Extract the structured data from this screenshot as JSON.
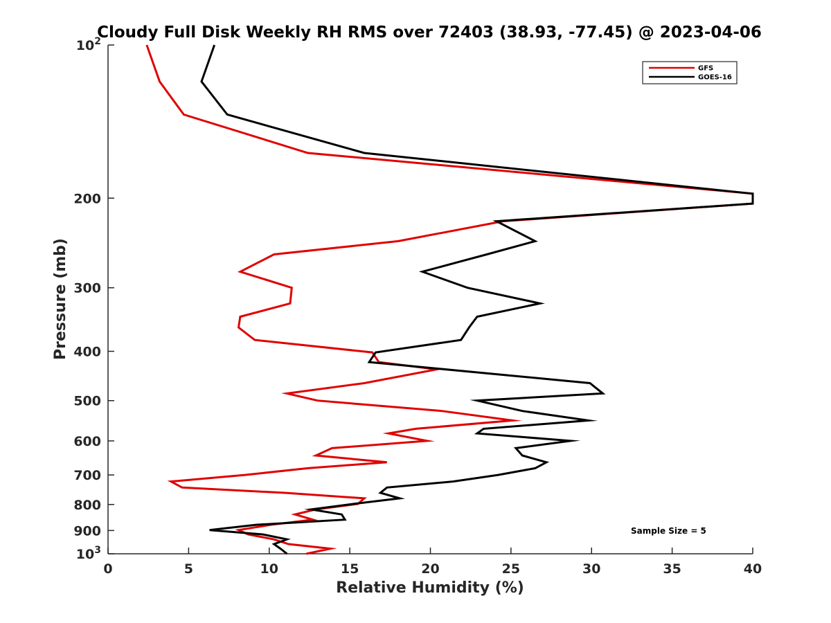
{
  "chart_data": {
    "type": "line",
    "title": "Cloudy Full Disk Weekly RH RMS over 72403 (38.93, -77.45) @ 2023-04-06",
    "xlabel": "Relative Humidity (%)",
    "ylabel": "Pressure (mb)",
    "xlim": [
      0,
      40
    ],
    "ylim": [
      100,
      1000
    ],
    "y_scale": "log",
    "y_reversed": true,
    "x_ticks": [
      "0",
      "5",
      "10",
      "15",
      "20",
      "25",
      "30",
      "35",
      "40"
    ],
    "y_ticks": [
      {
        "value": 100,
        "base": "10",
        "exp": "2"
      },
      {
        "value": 200,
        "label": "200"
      },
      {
        "value": 300,
        "label": "300"
      },
      {
        "value": 400,
        "label": "400"
      },
      {
        "value": 500,
        "label": "500"
      },
      {
        "value": 600,
        "label": "600"
      },
      {
        "value": 700,
        "label": "700"
      },
      {
        "value": 800,
        "label": "800"
      },
      {
        "value": 900,
        "label": "900"
      },
      {
        "value": 1000,
        "base": "10",
        "exp": "3"
      }
    ],
    "grid": false,
    "legend_position": "top-right",
    "annotation": "Sample Size = 5",
    "series": [
      {
        "name": "GFS",
        "color": "#e00000",
        "points": [
          [
            2.4,
            100
          ],
          [
            3.2,
            118
          ],
          [
            4.7,
            137
          ],
          [
            12.4,
            163
          ],
          [
            40.0,
            196
          ],
          [
            40.0,
            205
          ],
          [
            24.5,
            222
          ],
          [
            18.0,
            243
          ],
          [
            10.3,
            258
          ],
          [
            8.2,
            279
          ],
          [
            11.4,
            300
          ],
          [
            11.3,
            322
          ],
          [
            8.2,
            342
          ],
          [
            8.1,
            359
          ],
          [
            9.1,
            380
          ],
          [
            16.4,
            402
          ],
          [
            16.8,
            420
          ],
          [
            20.4,
            434
          ],
          [
            15.9,
            462
          ],
          [
            11.1,
            484
          ],
          [
            13.0,
            500
          ],
          [
            20.7,
            524
          ],
          [
            25.1,
            547
          ],
          [
            19.1,
            568
          ],
          [
            17.4,
            580
          ],
          [
            19.8,
            600
          ],
          [
            13.9,
            620
          ],
          [
            12.9,
            641
          ],
          [
            17.3,
            661
          ],
          [
            12.4,
            679
          ],
          [
            8.5,
            700
          ],
          [
            3.9,
            721
          ],
          [
            4.6,
            741
          ],
          [
            11.0,
            759
          ],
          [
            15.9,
            778
          ],
          [
            15.5,
            798
          ],
          [
            12.9,
            818
          ],
          [
            11.6,
            837
          ],
          [
            12.7,
            857
          ],
          [
            10.1,
            877
          ],
          [
            8.1,
            898
          ],
          [
            8.7,
            916
          ],
          [
            10.3,
            937
          ],
          [
            11.2,
            957
          ],
          [
            13.8,
            977
          ],
          [
            12.3,
            1000
          ]
        ]
      },
      {
        "name": "GOES-16",
        "color": "#000000",
        "points": [
          [
            6.6,
            100
          ],
          [
            5.8,
            118
          ],
          [
            7.4,
            137
          ],
          [
            15.9,
            163
          ],
          [
            40.0,
            196
          ],
          [
            40.0,
            205
          ],
          [
            24.1,
            222
          ],
          [
            26.5,
            243
          ],
          [
            23.5,
            258
          ],
          [
            19.5,
            279
          ],
          [
            22.3,
            300
          ],
          [
            26.8,
            322
          ],
          [
            22.9,
            342
          ],
          [
            22.4,
            359
          ],
          [
            21.9,
            380
          ],
          [
            16.6,
            402
          ],
          [
            16.2,
            420
          ],
          [
            29.9,
            462
          ],
          [
            30.7,
            484
          ],
          [
            22.9,
            500
          ],
          [
            25.7,
            524
          ],
          [
            29.8,
            547
          ],
          [
            23.3,
            568
          ],
          [
            22.9,
            580
          ],
          [
            28.7,
            600
          ],
          [
            25.3,
            620
          ],
          [
            25.7,
            641
          ],
          [
            27.2,
            661
          ],
          [
            26.5,
            679
          ],
          [
            24.2,
            700
          ],
          [
            21.4,
            721
          ],
          [
            17.3,
            741
          ],
          [
            16.9,
            759
          ],
          [
            18.1,
            778
          ],
          [
            15.2,
            798
          ],
          [
            12.6,
            818
          ],
          [
            14.5,
            837
          ],
          [
            14.7,
            857
          ],
          [
            9.2,
            877
          ],
          [
            6.3,
            898
          ],
          [
            9.6,
            916
          ],
          [
            11.1,
            937
          ],
          [
            10.3,
            957
          ],
          [
            10.7,
            977
          ],
          [
            11.1,
            1000
          ]
        ]
      }
    ]
  }
}
